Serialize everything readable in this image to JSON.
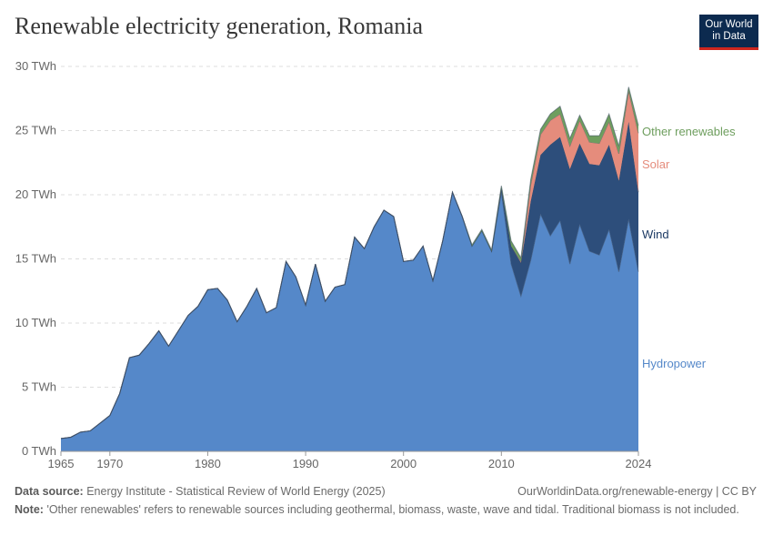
{
  "title": "Renewable electricity generation, Romania",
  "logo": {
    "line1": "Our World",
    "line2": "in Data"
  },
  "footer": {
    "source_label": "Data source:",
    "source_text": "Energy Institute - Statistical Review of World Energy (2025)",
    "url": "OurWorldinData.org/renewable-energy | CC BY",
    "note_label": "Note:",
    "note_text": "'Other renewables' refers to renewable sources including geothermal, biomass, waste, wave and tidal. Traditional biomass is not included."
  },
  "chart_data": {
    "type": "area",
    "stacked": true,
    "xlim": [
      1965,
      2024
    ],
    "ylim": [
      0,
      30
    ],
    "y_ticks": [
      0,
      5,
      10,
      15,
      20,
      25,
      30
    ],
    "y_tick_labels": [
      "0 TWh",
      "5 TWh",
      "10 TWh",
      "15 TWh",
      "20 TWh",
      "25 TWh",
      "30 TWh"
    ],
    "x_ticks": [
      1965,
      1970,
      1980,
      1990,
      2000,
      2010,
      2024
    ],
    "x_tick_labels": [
      "1965",
      "1970",
      "1980",
      "1990",
      "2000",
      "2010",
      "2024"
    ],
    "grid": true,
    "legend": "right",
    "x": [
      1965,
      1966,
      1967,
      1968,
      1969,
      1970,
      1971,
      1972,
      1973,
      1974,
      1975,
      1976,
      1977,
      1978,
      1979,
      1980,
      1981,
      1982,
      1983,
      1984,
      1985,
      1986,
      1987,
      1988,
      1989,
      1990,
      1991,
      1992,
      1993,
      1994,
      1995,
      1996,
      1997,
      1998,
      1999,
      2000,
      2001,
      2002,
      2003,
      2004,
      2005,
      2006,
      2007,
      2008,
      2009,
      2010,
      2011,
      2012,
      2013,
      2014,
      2015,
      2016,
      2017,
      2018,
      2019,
      2020,
      2021,
      2022,
      2023,
      2024
    ],
    "series": [
      {
        "name": "Hydropower",
        "color": "#5588c9",
        "values": [
          1.0,
          1.1,
          1.5,
          1.6,
          2.2,
          2.8,
          4.5,
          7.3,
          7.5,
          8.4,
          9.4,
          8.2,
          9.4,
          10.6,
          11.3,
          12.6,
          12.7,
          11.8,
          10.1,
          11.3,
          12.7,
          10.8,
          11.2,
          14.8,
          13.6,
          11.4,
          14.6,
          11.7,
          12.8,
          13.0,
          16.7,
          15.8,
          17.5,
          18.8,
          18.3,
          14.8,
          14.9,
          16.0,
          13.3,
          16.4,
          20.2,
          18.3,
          16.0,
          17.2,
          15.6,
          20.2,
          14.6,
          12.1,
          14.9,
          18.5,
          16.8,
          18.0,
          14.6,
          17.7,
          15.6,
          15.3,
          17.3,
          14.0,
          18.1,
          14.0
        ]
      },
      {
        "name": "Wind",
        "color": "#2d4e7b",
        "values": [
          0,
          0,
          0,
          0,
          0,
          0,
          0,
          0,
          0,
          0,
          0,
          0,
          0,
          0,
          0,
          0,
          0,
          0,
          0,
          0,
          0,
          0,
          0,
          0,
          0,
          0,
          0,
          0,
          0,
          0,
          0,
          0,
          0,
          0,
          0,
          0,
          0,
          0,
          0,
          0,
          0,
          0,
          0,
          0,
          0,
          0.3,
          1.4,
          2.6,
          4.6,
          4.6,
          7.1,
          6.5,
          7.4,
          6.3,
          6.8,
          7.0,
          6.6,
          7.1,
          7.6,
          6.2
        ]
      },
      {
        "name": "Solar",
        "color": "#e58c7c",
        "values": [
          0,
          0,
          0,
          0,
          0,
          0,
          0,
          0,
          0,
          0,
          0,
          0,
          0,
          0,
          0,
          0,
          0,
          0,
          0,
          0,
          0,
          0,
          0,
          0,
          0,
          0,
          0,
          0,
          0,
          0,
          0,
          0,
          0,
          0,
          0,
          0,
          0,
          0,
          0,
          0,
          0,
          0,
          0,
          0,
          0,
          0,
          0,
          0.1,
          1.3,
          1.6,
          1.9,
          1.8,
          1.8,
          1.8,
          1.7,
          1.7,
          1.8,
          2.1,
          2.4,
          4.6
        ]
      },
      {
        "name": "Other renewables",
        "color": "#6e9e5e",
        "values": [
          0,
          0,
          0,
          0,
          0,
          0,
          0,
          0,
          0,
          0,
          0,
          0,
          0,
          0,
          0,
          0,
          0,
          0,
          0,
          0,
          0,
          0,
          0,
          0,
          0,
          0,
          0,
          0,
          0,
          0,
          0,
          0,
          0,
          0,
          0,
          0,
          0,
          0,
          0,
          0,
          0,
          0,
          0.1,
          0.1,
          0.1,
          0.2,
          0.4,
          0.3,
          0.4,
          0.4,
          0.5,
          0.6,
          0.6,
          0.4,
          0.5,
          0.6,
          0.6,
          0.6,
          0.3,
          0.6
        ]
      }
    ]
  }
}
